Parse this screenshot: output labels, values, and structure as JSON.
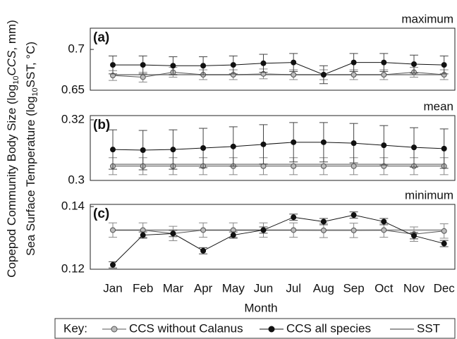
{
  "chart_data": {
    "type": "line",
    "categories": [
      "Jan",
      "Feb",
      "Mar",
      "Apr",
      "May",
      "Jun",
      "Jul",
      "Aug",
      "Sep",
      "Oct",
      "Nov",
      "Dec"
    ],
    "x_label": "Month",
    "y_label": [
      [
        "Copepod Community Body Size (log",
        "10",
        "CCS",
        ", mm)"
      ],
      [
        "Sea Surface Temperature (log",
        "10",
        "SST, °C)"
      ]
    ],
    "legend_title": "Key:",
    "series": [
      {
        "name": "CCS without Calanus",
        "color": "#555555",
        "marker_fill": "#bbbbbb"
      },
      {
        "name": "CCS all species",
        "color": "#111111",
        "marker_fill": "#111111"
      },
      {
        "name": "SST",
        "color": "#9a9a9a"
      }
    ],
    "panels": [
      {
        "label": "(a)",
        "title": "maximum",
        "ylim": [
          0.65,
          0.726
        ],
        "yticks": [
          0.65,
          0.7
        ],
        "values": [
          [
            0.668,
            0.666,
            0.672,
            0.669,
            0.669,
            0.67,
            0.669,
            0.669,
            0.669,
            0.669,
            0.672,
            0.669
          ],
          [
            0.681,
            0.681,
            0.68,
            0.68,
            0.681,
            0.683,
            0.684,
            0.669,
            0.684,
            0.684,
            0.682,
            0.681
          ],
          [
            0.669,
            0.669,
            0.669,
            0.669,
            0.669,
            0.669,
            0.669,
            0.669,
            0.669,
            0.669,
            0.669,
            0.669
          ]
        ],
        "errors": [
          [
            0.006,
            0.006,
            0.006,
            0.006,
            0.006,
            0.006,
            0.006,
            0.006,
            0.006,
            0.006,
            0.006,
            0.006
          ],
          [
            0.011,
            0.011,
            0.011,
            0.011,
            0.011,
            0.011,
            0.011,
            0.011,
            0.011,
            0.011,
            0.011,
            0.011
          ]
        ]
      },
      {
        "label": "(b)",
        "title": "mean",
        "ylim": [
          0.3,
          0.3214
        ],
        "yticks": [
          0.3,
          0.32
        ],
        "values": [
          [
            0.3047,
            0.3047,
            0.3047,
            0.3047,
            0.3047,
            0.3047,
            0.3047,
            0.3047,
            0.3047,
            0.3047,
            0.3047,
            0.3047
          ],
          [
            0.3102,
            0.31,
            0.3102,
            0.3107,
            0.3112,
            0.3119,
            0.3126,
            0.3126,
            0.3123,
            0.3116,
            0.3109,
            0.3105
          ],
          [
            0.3053,
            0.3053,
            0.3053,
            0.3053,
            0.3053,
            0.3053,
            0.3053,
            0.3053,
            0.3053,
            0.3053,
            0.3053,
            0.3053
          ]
        ],
        "errors": [
          [
            0.0028,
            0.0028,
            0.0028,
            0.0028,
            0.0028,
            0.0028,
            0.0028,
            0.0028,
            0.0028,
            0.0028,
            0.0028,
            0.0028
          ],
          [
            0.0065,
            0.0065,
            0.0065,
            0.0065,
            0.0065,
            0.0065,
            0.0065,
            0.0065,
            0.0065,
            0.0065,
            0.0065,
            0.0065
          ]
        ]
      },
      {
        "label": "(c)",
        "title": "minimum",
        "ylim": [
          0.12,
          0.1407
        ],
        "yticks": [
          0.12,
          0.14
        ],
        "values": [
          [
            0.1325,
            0.1325,
            0.1314,
            0.1325,
            0.1325,
            0.1325,
            0.1325,
            0.1324,
            0.1324,
            0.1325,
            0.1312,
            0.1322
          ],
          [
            0.1214,
            0.1309,
            0.1314,
            0.1259,
            0.1309,
            0.1325,
            0.1366,
            0.1352,
            0.1373,
            0.1352,
            0.1307,
            0.1282
          ],
          [
            0.1325,
            0.1325,
            0.1325,
            0.1325,
            0.1325,
            0.1325,
            0.1325,
            0.1325,
            0.1325,
            0.1325,
            0.1325,
            0.1325
          ]
        ],
        "errors": [
          [
            0.0023,
            0.0023,
            0.0023,
            0.0023,
            0.0023,
            0.0023,
            0.0023,
            0.0023,
            0.0023,
            0.0023,
            0.0023,
            0.0023
          ],
          [
            0.001,
            0.001,
            0.001,
            0.001,
            0.001,
            0.001,
            0.001,
            0.001,
            0.001,
            0.001,
            0.001,
            0.001
          ]
        ]
      }
    ]
  }
}
